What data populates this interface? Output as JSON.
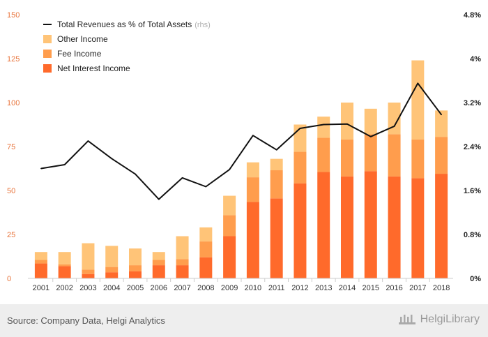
{
  "chart_data": {
    "type": "bar",
    "categories": [
      "2001",
      "2002",
      "2003",
      "2004",
      "2005",
      "2006",
      "2007",
      "2008",
      "2009",
      "2010",
      "2011",
      "2012",
      "2013",
      "2014",
      "2015",
      "2016",
      "2017",
      "2018"
    ],
    "series": [
      {
        "name": "Net Interest Income",
        "stack": true,
        "color": "#ff6a2b",
        "values": [
          8.5,
          7,
          2.5,
          3.5,
          4,
          7.5,
          7.5,
          12,
          24,
          43.5,
          45.5,
          54,
          60.5,
          58,
          61,
          58,
          57,
          59.5
        ]
      },
      {
        "name": "Fee Income",
        "stack": true,
        "color": "#ff9d4d",
        "values": [
          2,
          1,
          2.5,
          3,
          3.5,
          3,
          3.5,
          9,
          12,
          14,
          16,
          18,
          19.5,
          21,
          21,
          24,
          22,
          21
        ]
      },
      {
        "name": "Other Income",
        "stack": true,
        "color": "#ffc478",
        "values": [
          4.5,
          7,
          15,
          12,
          9.5,
          4.5,
          13,
          8,
          11,
          8.5,
          6.5,
          15.5,
          12,
          21,
          14.5,
          18,
          45,
          15
        ]
      },
      {
        "name": "Total Revenues as % of Total Assets",
        "axis": "right",
        "type": "line",
        "color": "#111111",
        "values": [
          2.0,
          2.07,
          2.5,
          2.18,
          1.9,
          1.44,
          1.83,
          1.67,
          1.98,
          2.6,
          2.34,
          2.73,
          2.8,
          2.81,
          2.58,
          2.77,
          3.55,
          2.98
        ]
      }
    ],
    "left_axis": {
      "ylim": [
        0,
        150
      ],
      "ticks": [
        "0",
        "25",
        "50",
        "75",
        "100",
        "125",
        "150"
      ],
      "color": "#e8733a"
    },
    "right_axis": {
      "ylim": [
        0,
        4.8
      ],
      "ticks": [
        "0%",
        "0.8%",
        "1.6%",
        "2.4%",
        "3.2%",
        "4%",
        "4.8%"
      ]
    },
    "legend": {
      "placement": "top-left",
      "items": [
        {
          "label": "Total Revenues as % of Total Assets",
          "note": "(rhs)",
          "kind": "line",
          "color": "#111111"
        },
        {
          "label": "Other Income",
          "kind": "box",
          "color": "#ffc478"
        },
        {
          "label": "Fee Income",
          "kind": "box",
          "color": "#ff9d4d"
        },
        {
          "label": "Net Interest Income",
          "kind": "box",
          "color": "#ff6a2b"
        }
      ]
    },
    "grid": false
  },
  "footer": {
    "source": "Source: Company Data, Helgi Analytics",
    "brand": "HelgiLibrary",
    "brand_icon": "helgi-logo-icon"
  }
}
